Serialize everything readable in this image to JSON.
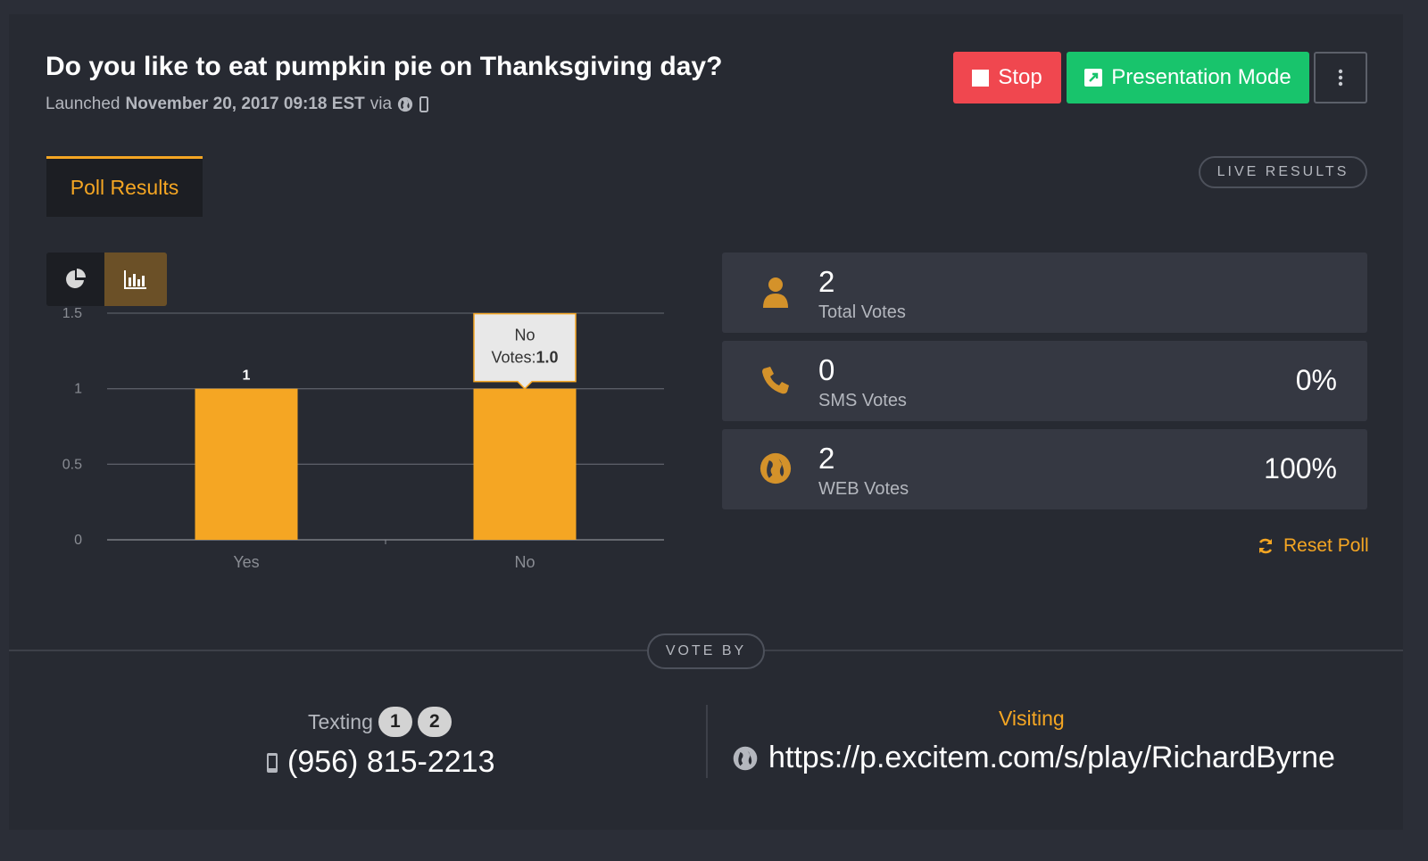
{
  "poll": {
    "question": "Do you like to eat pumpkin pie on Thanksgiving day?",
    "launched_prefix": "Launched",
    "launched_date": "November 20, 2017 09:18 EST",
    "via": "via"
  },
  "toolbar": {
    "stop_label": "Stop",
    "presentation_label": "Presentation Mode"
  },
  "tabs": {
    "poll_results": "Poll Results"
  },
  "live_results": "LIVE RESULTS",
  "stats": {
    "total": {
      "value": "2",
      "label": "Total Votes"
    },
    "sms": {
      "value": "0",
      "label": "SMS Votes",
      "percent": "0%"
    },
    "web": {
      "value": "2",
      "label": "WEB Votes",
      "percent": "100%"
    }
  },
  "reset_label": "Reset Poll",
  "vote_by": {
    "pill": "VOTE BY",
    "texting_label": "Texting",
    "badges": [
      "1",
      "2"
    ],
    "phone": "(956) 815-2213",
    "visiting_label": "Visiting",
    "url": "https://p.excitem.com/s/play/RichardByrne"
  },
  "colors": {
    "accent": "#f5a623",
    "stop": "#f0474f",
    "present": "#18c46c",
    "card": "#272a32",
    "stat_bg": "#353842"
  },
  "icons": {
    "stop": "stop-square-icon",
    "presentation": "external-link-icon",
    "more": "vertical-dots-icon",
    "pie": "pie-chart-icon",
    "bar": "bar-chart-icon",
    "user": "user-icon",
    "phone": "phone-icon",
    "globe": "globe-icon",
    "mobile": "mobile-icon",
    "refresh": "refresh-icon"
  },
  "chart_data": {
    "type": "bar",
    "categories": [
      "Yes",
      "No"
    ],
    "values": [
      1,
      1
    ],
    "ylim": [
      0,
      1.5
    ],
    "yticks": [
      "0",
      "0.5",
      "1",
      "1.5"
    ],
    "bar_color": "#f5a623",
    "grid": true,
    "tooltip": {
      "title": "No",
      "label": "Votes:",
      "value": "1.0"
    }
  }
}
